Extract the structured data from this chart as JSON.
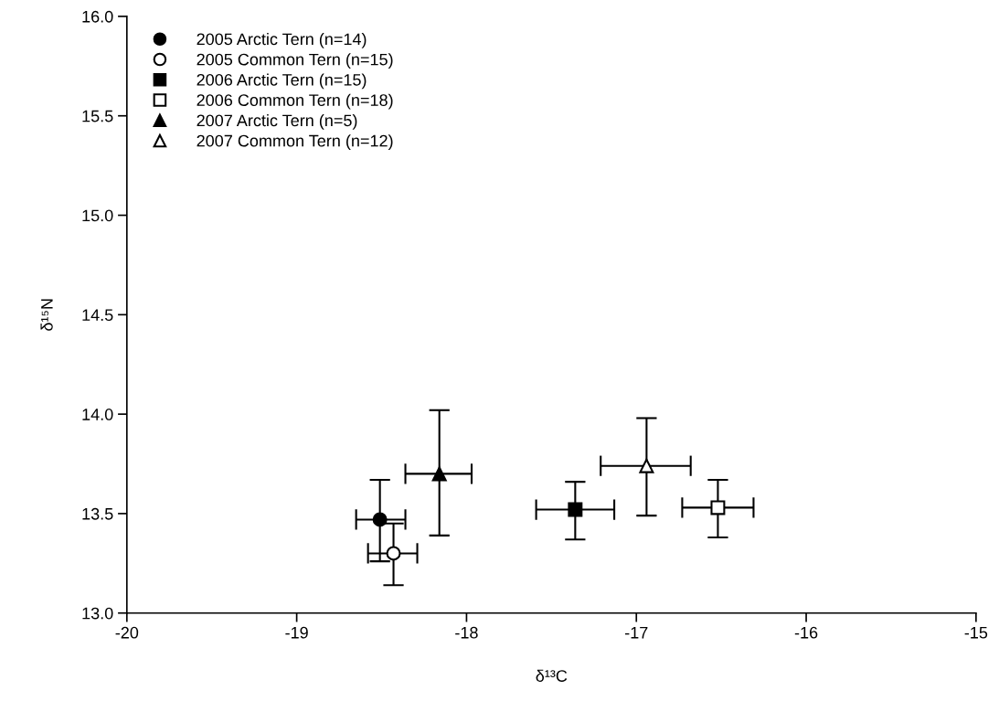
{
  "chart_data": {
    "type": "scatter",
    "xlabel": "δ¹³C",
    "ylabel": "δ¹⁵N",
    "xlim": [
      -20,
      -15
    ],
    "xticks": [
      -20,
      -19,
      -18,
      -17,
      -16,
      -15
    ],
    "ylim": [
      13,
      16
    ],
    "yticks": [
      {
        "value": 13,
        "label": "13.0"
      },
      {
        "value": 13.5,
        "label": "13.5"
      },
      {
        "value": 14,
        "label": "14.0"
      },
      {
        "value": 14.5,
        "label": "14.5"
      },
      {
        "value": 15,
        "label": "15.0"
      },
      {
        "value": 15.5,
        "label": "15.5"
      },
      {
        "value": 16,
        "label": "16.0"
      }
    ],
    "grid": false,
    "legend": "top left",
    "series": [
      {
        "name": "2005 Arctic Tern (n=14)",
        "color": "#000000",
        "marker": "circle",
        "x": [
          -18.51
        ],
        "values": [
          13.47
        ],
        "errors": [
          [
            13.26,
            13.67
          ]
        ],
        "xerrors": [
          [
            -18.65,
            -18.36
          ]
        ]
      },
      {
        "name": "2005 Common Tern (n=15)",
        "color": "#ffffff",
        "marker": "circle",
        "x": [
          -18.43
        ],
        "values": [
          13.3
        ],
        "errors": [
          [
            13.14,
            13.45
          ]
        ],
        "xerrors": [
          [
            -18.58,
            -18.29
          ]
        ]
      },
      {
        "name": "2006 Arctic Tern (n=15)",
        "color": "#000000",
        "marker": "square",
        "x": [
          -17.36
        ],
        "values": [
          13.52
        ],
        "errors": [
          [
            13.37,
            13.66
          ]
        ],
        "xerrors": [
          [
            -17.59,
            -17.13
          ]
        ]
      },
      {
        "name": "2006 Common Tern (n=18)",
        "color": "#ffffff",
        "marker": "square",
        "x": [
          -16.52
        ],
        "values": [
          13.53
        ],
        "errors": [
          [
            13.38,
            13.67
          ]
        ],
        "xerrors": [
          [
            -16.73,
            -16.31
          ]
        ]
      },
      {
        "name": "2007 Arctic Tern (n=5)",
        "color": "#000000",
        "marker": "triangle",
        "x": [
          -18.16
        ],
        "values": [
          13.7
        ],
        "errors": [
          [
            13.39,
            14.02
          ]
        ],
        "xerrors": [
          [
            -18.36,
            -17.97
          ]
        ]
      },
      {
        "name": "2007 Common Tern (n=12)",
        "color": "#ffffff",
        "marker": "triangle",
        "x": [
          -16.94
        ],
        "values": [
          13.74
        ],
        "errors": [
          [
            13.49,
            13.98
          ]
        ],
        "xerrors": [
          [
            -17.21,
            -16.68
          ]
        ]
      }
    ]
  }
}
